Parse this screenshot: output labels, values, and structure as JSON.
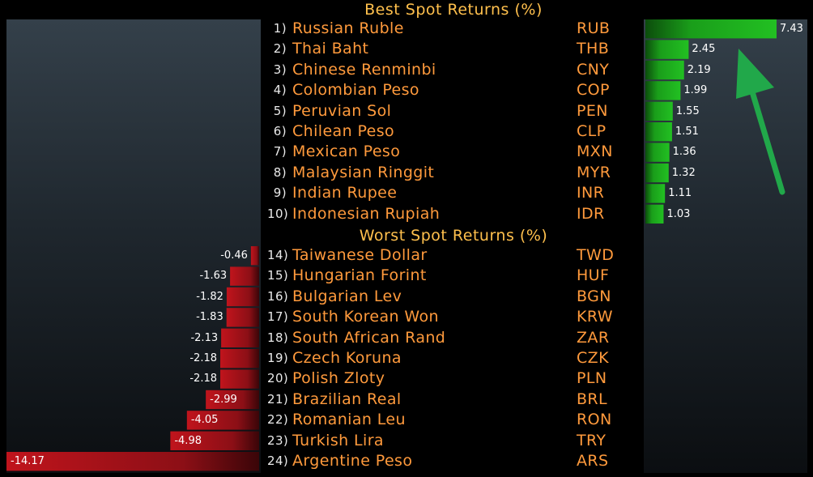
{
  "chart_data": {
    "type": "bar",
    "sections": [
      {
        "title": "Best Spot Returns (%)",
        "rows": [
          {
            "rank": "1)",
            "currency": "Russian Ruble",
            "code": "RUB",
            "value": 7.43,
            "label": "7.43"
          },
          {
            "rank": "2)",
            "currency": "Thai Baht",
            "code": "THB",
            "value": 2.45,
            "label": "2.45"
          },
          {
            "rank": "3)",
            "currency": "Chinese Renminbi",
            "code": "CNY",
            "value": 2.19,
            "label": "2.19"
          },
          {
            "rank": "4)",
            "currency": "Colombian Peso",
            "code": "COP",
            "value": 1.99,
            "label": "1.99"
          },
          {
            "rank": "5)",
            "currency": "Peruvian Sol",
            "code": "PEN",
            "value": 1.55,
            "label": "1.55"
          },
          {
            "rank": "6)",
            "currency": "Chilean Peso",
            "code": "CLP",
            "value": 1.51,
            "label": "1.51"
          },
          {
            "rank": "7)",
            "currency": "Mexican Peso",
            "code": "MXN",
            "value": 1.36,
            "label": "1.36"
          },
          {
            "rank": "8)",
            "currency": "Malaysian Ringgit",
            "code": "MYR",
            "value": 1.32,
            "label": "1.32"
          },
          {
            "rank": "9)",
            "currency": "Indian Rupee",
            "code": "INR",
            "value": 1.11,
            "label": "1.11"
          },
          {
            "rank": "10)",
            "currency": "Indonesian Rupiah",
            "code": "IDR",
            "value": 1.03,
            "label": "1.03"
          }
        ]
      },
      {
        "title": "Worst Spot Returns (%)",
        "rows": [
          {
            "rank": "14)",
            "currency": "Taiwanese Dollar",
            "code": "TWD",
            "value": -0.46,
            "label": "-0.46"
          },
          {
            "rank": "15)",
            "currency": "Hungarian Forint",
            "code": "HUF",
            "value": -1.63,
            "label": "-1.63"
          },
          {
            "rank": "16)",
            "currency": "Bulgarian Lev",
            "code": "BGN",
            "value": -1.82,
            "label": "-1.82"
          },
          {
            "rank": "17)",
            "currency": "South Korean Won",
            "code": "KRW",
            "value": -1.83,
            "label": "-1.83"
          },
          {
            "rank": "18)",
            "currency": "South African Rand",
            "code": "ZAR",
            "value": -2.13,
            "label": "-2.13"
          },
          {
            "rank": "19)",
            "currency": "Czech Koruna",
            "code": "CZK",
            "value": -2.18,
            "label": "-2.18"
          },
          {
            "rank": "20)",
            "currency": "Polish Zloty",
            "code": "PLN",
            "value": -2.18,
            "label": "-2.18"
          },
          {
            "rank": "21)",
            "currency": "Brazilian Real",
            "code": "BRL",
            "value": -2.99,
            "label": "-2.99"
          },
          {
            "rank": "22)",
            "currency": "Romanian Leu",
            "code": "RON",
            "value": -4.05,
            "label": "-4.05"
          },
          {
            "rank": "23)",
            "currency": "Turkish Lira",
            "code": "TRY",
            "value": -4.98,
            "label": "-4.98"
          },
          {
            "rank": "24)",
            "currency": "Argentine Peso",
            "code": "ARS",
            "value": -14.17,
            "label": "-14.17"
          }
        ]
      }
    ]
  },
  "colors": {
    "positive_bar": "#1fb31f",
    "negative_bar": "#b3141c",
    "arrow": "#21a84a",
    "text_orange": "#ff9a3c",
    "title_yellow": "#ffc04d"
  },
  "annotation": {
    "icon": "arrow-up-left-icon"
  }
}
